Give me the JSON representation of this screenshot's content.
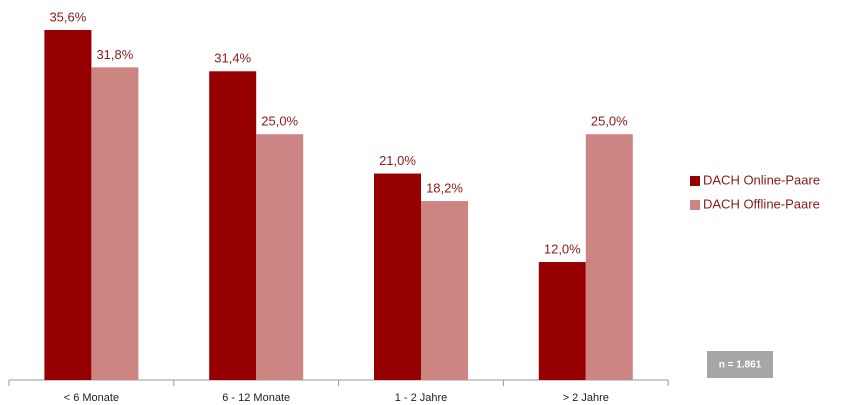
{
  "chart_data": {
    "type": "bar",
    "categories": [
      "< 6 Monate",
      "6 - 12 Monate",
      "1 - 2 Jahre",
      "> 2 Jahre"
    ],
    "series": [
      {
        "name": "DACH Online-Paare",
        "color": "#960000",
        "values": [
          35.6,
          31.4,
          21.0,
          12.0
        ],
        "value_labels": [
          "35,6%",
          "31,4%",
          "21,0%",
          "12,0%"
        ]
      },
      {
        "name": "DACH Offline-Paare",
        "color": "#cd8584",
        "values": [
          31.8,
          25.0,
          18.2,
          25.0
        ],
        "value_labels": [
          "31,8%",
          "25,0%",
          "18,2%",
          "25,0%"
        ]
      }
    ],
    "annotation": "n = 1.861",
    "legend": "right"
  }
}
